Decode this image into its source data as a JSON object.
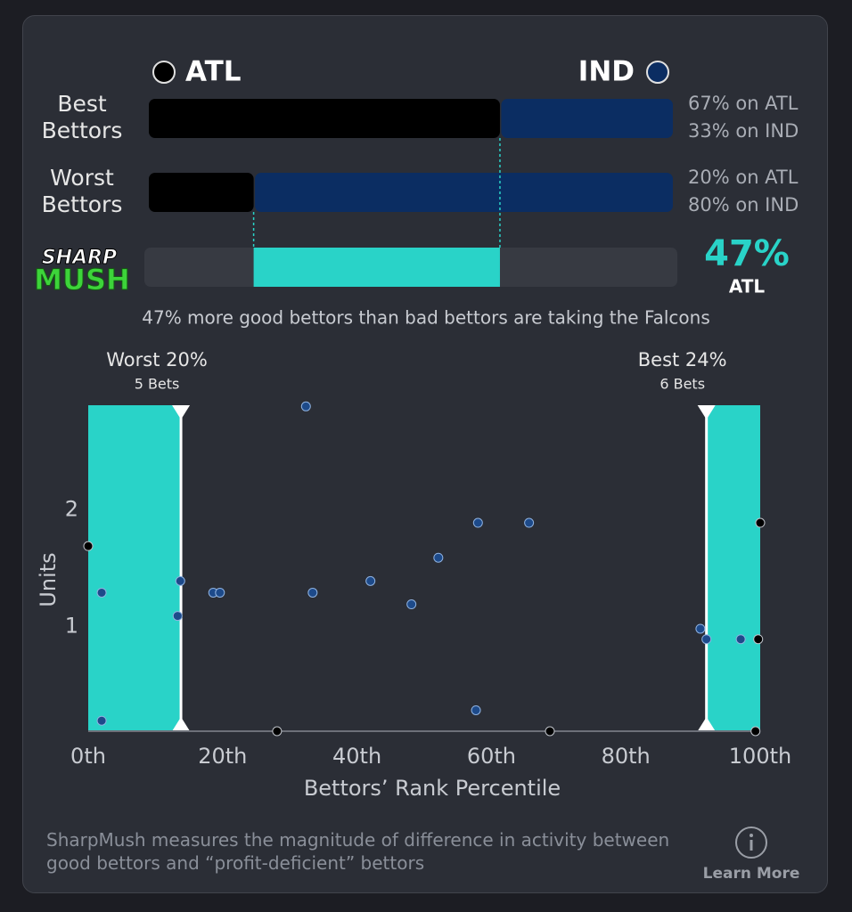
{
  "chart_data": [
    {
      "type": "stacked-bar",
      "categories": [
        "Best Bettors",
        "Worst Bettors"
      ],
      "series": [
        {
          "name": "ATL",
          "color": "#000000",
          "values": [
            67,
            20
          ],
          "value_labels": [
            "67% on ATL",
            "20% on ATL"
          ]
        },
        {
          "name": "IND",
          "color": "#0b2d62",
          "values": [
            33,
            80
          ],
          "value_labels": [
            "33% on IND",
            "80% on IND"
          ]
        }
      ],
      "xlim": [
        0,
        100
      ],
      "logo_top": "SHARP",
      "logo_bottom": "MUSH",
      "difference": 47,
      "difference_label": "47%",
      "difference_team": "ATL",
      "difference_color": "#29d3c8",
      "subtitle": "47% more good bettors than bad bettors are taking the Falcons"
    },
    {
      "type": "scatter",
      "xlabel": "Bettors’ Rank Percentile",
      "ylabel": "Units",
      "xlim": [
        0,
        100
      ],
      "ylim": [
        0.1,
        2.9
      ],
      "xticks": [
        {
          "value": 0,
          "label": "0th"
        },
        {
          "value": 20,
          "label": "20th"
        },
        {
          "value": 40,
          "label": "40th"
        },
        {
          "value": 60,
          "label": "60th"
        },
        {
          "value": 80,
          "label": "80th"
        },
        {
          "value": 100,
          "label": "100th"
        }
      ],
      "yticks": [
        1,
        2
      ],
      "regions": [
        {
          "label": "Worst 20%",
          "sublabel": "5 Bets",
          "x": [
            0,
            13.8
          ]
        },
        {
          "label": "Best 24%",
          "sublabel": "6 Bets",
          "x": [
            92,
            100
          ]
        }
      ],
      "region_color": "#29d3c8",
      "series": [
        {
          "color": "#000000",
          "x": [
            0,
            28.1,
            68.7,
            99.7,
            100,
            99.3
          ],
          "values": [
            1.69,
            0.1,
            0.1,
            0.89,
            1.89,
            0.1
          ]
        },
        {
          "color": "#1d4a8a",
          "x": [
            2,
            2,
            13.7,
            13.3,
            18.6,
            19.6,
            32.4,
            33.4,
            42.0,
            48.1,
            52.1,
            58.0,
            57.7,
            65.6,
            91.1,
            92.0,
            97.1
          ],
          "values": [
            1.29,
            0.19,
            1.39,
            1.09,
            1.29,
            1.29,
            2.89,
            1.29,
            1.39,
            1.19,
            1.59,
            1.89,
            0.28,
            1.89,
            0.98,
            0.89,
            0.89
          ]
        }
      ]
    }
  ],
  "footer": {
    "note": "SharpMush measures the magnitude of difference in activity between good bettors and “profit-deficient” bettors",
    "link": "Learn More"
  }
}
